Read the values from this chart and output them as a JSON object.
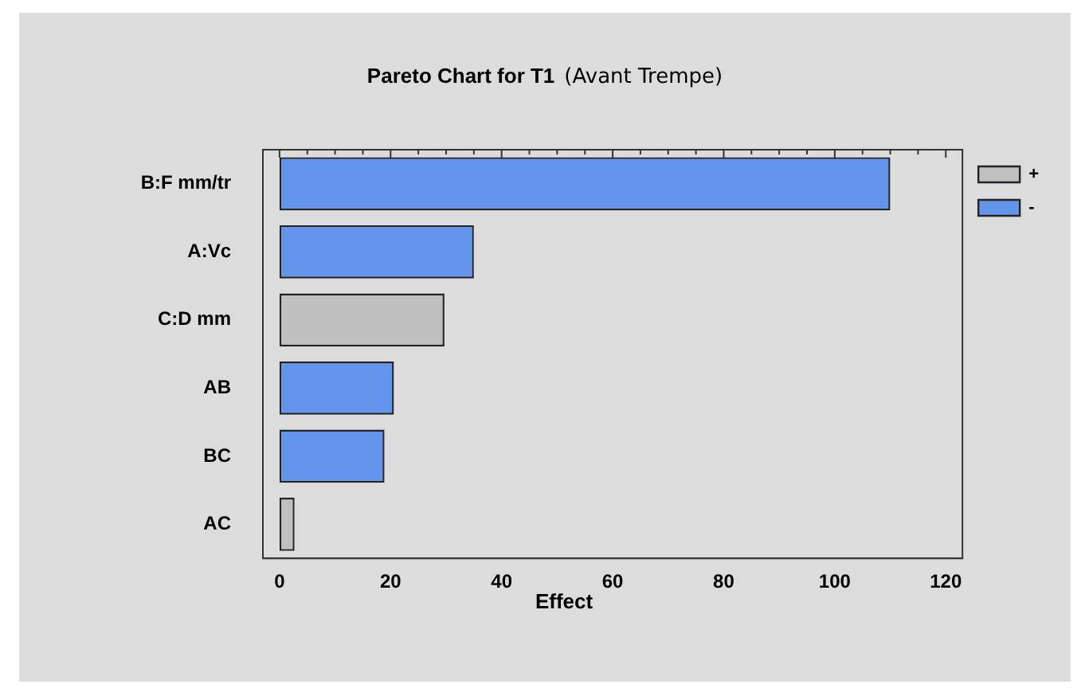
{
  "chart_data": {
    "type": "bar",
    "orientation": "horizontal",
    "stacked": true,
    "title": "Pareto Chart for T1",
    "subtitle": "(Avant Trempe)",
    "xlabel": "Effect",
    "categories": [
      "B:F mm/tr",
      "A:Vc",
      "C:D mm",
      "AB",
      "BC",
      "AC"
    ],
    "series": [
      {
        "name": "+",
        "color": "#c0c0c0",
        "values": [
          null,
          null,
          29.7,
          null,
          null,
          2.7
        ]
      },
      {
        "name": "-",
        "color": "#6495ed",
        "values": [
          110,
          35,
          null,
          20.6,
          18.9,
          null
        ]
      }
    ],
    "xlim": [
      -3,
      123
    ],
    "xticks": [
      0,
      {
        "value": 5,
        "label": null
      },
      {
        "value": 10,
        "label": null
      },
      {
        "value": 15,
        "label": null
      },
      20,
      {
        "value": 25,
        "label": null
      },
      {
        "value": 30,
        "label": null
      },
      {
        "value": 35,
        "label": null
      },
      40,
      {
        "value": 45,
        "label": null
      },
      {
        "value": 50,
        "label": null
      },
      {
        "value": 55,
        "label": null
      },
      60,
      {
        "value": 65,
        "label": null
      },
      {
        "value": 70,
        "label": null
      },
      {
        "value": 75,
        "label": null
      },
      80,
      {
        "value": 85,
        "label": null
      },
      {
        "value": 90,
        "label": null
      },
      {
        "value": 95,
        "label": null
      },
      100,
      {
        "value": 105,
        "label": null
      },
      {
        "value": 110,
        "label": null
      },
      {
        "value": 115,
        "label": null
      },
      120
    ],
    "grid": false,
    "legend": "top right"
  }
}
